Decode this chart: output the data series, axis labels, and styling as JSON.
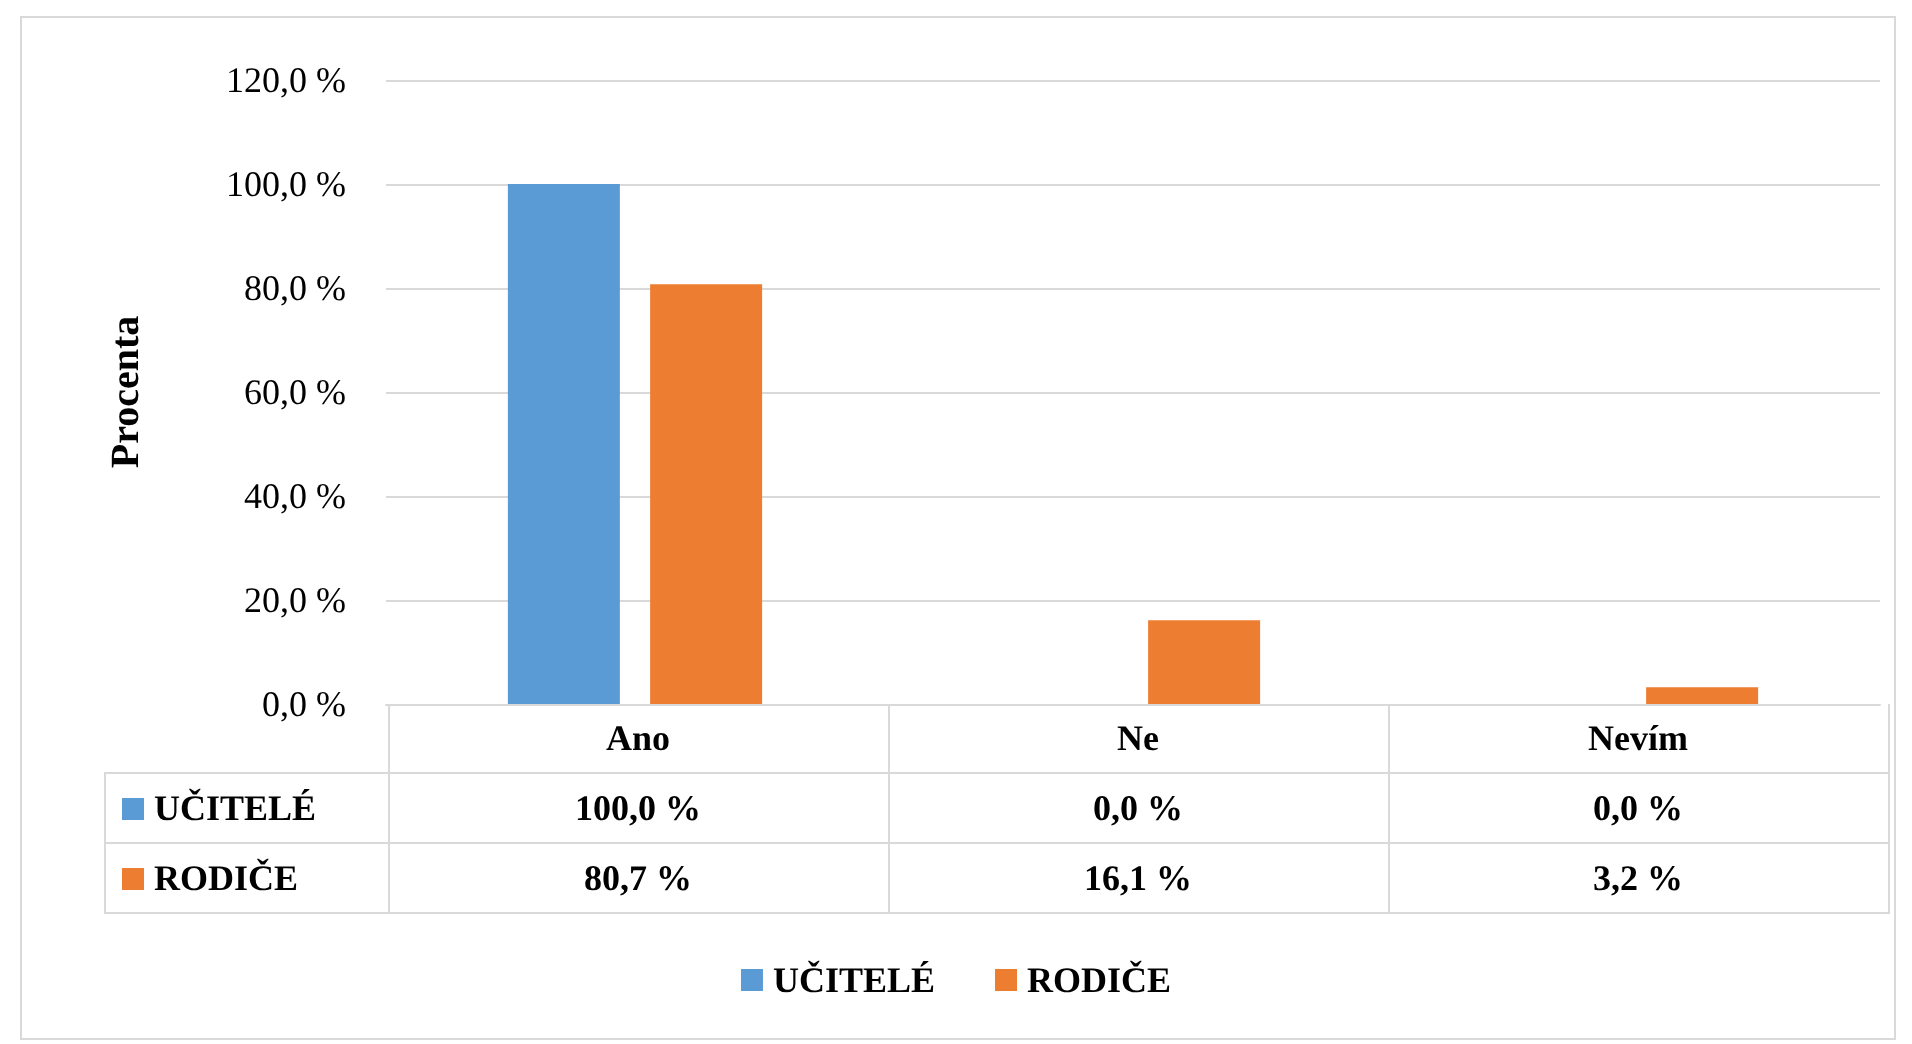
{
  "chart_data": {
    "type": "bar",
    "ylabel": "Procenta",
    "categories": [
      "Ano",
      "Ne",
      "Nevím"
    ],
    "series": [
      {
        "name": "UČITELÉ",
        "color": "#5b9bd5",
        "values": [
          100,
          0,
          0
        ],
        "value_labels": [
          "100,0 %",
          "0,0 %",
          "0,0 %"
        ]
      },
      {
        "name": "RODIČE",
        "color": "#ed7d31",
        "values": [
          80.7,
          16.1,
          3.2
        ],
        "value_labels": [
          "80,7 %",
          "16,1 %",
          "3,2 %"
        ]
      }
    ],
    "ylim": [
      0,
      120
    ],
    "yticks": [
      {
        "value": 0,
        "label": "0,0 %"
      },
      {
        "value": 20,
        "label": "20,0 %"
      },
      {
        "value": 40,
        "label": "40,0 %"
      },
      {
        "value": 60,
        "label": "60,0 %"
      },
      {
        "value": 80,
        "label": "80,0 %"
      },
      {
        "value": 100,
        "label": "100,0 %"
      },
      {
        "value": 120,
        "label": "120,0 %"
      }
    ],
    "grid": "y",
    "legend": "bottom"
  }
}
